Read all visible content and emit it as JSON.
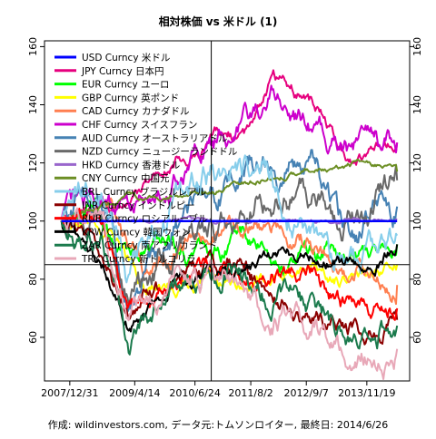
{
  "chart_data": {
    "type": "line",
    "title": "相対株価 vs 米ドル (1)",
    "footer": "作成: wildinvestors.com, データ元:トムソンロイター, 最終日: 2014/6/26",
    "x_start": "2007-11-01",
    "x_end": "2014-06-26",
    "xlim": [
      "2007-07-01",
      "2014-09-25"
    ],
    "ylim": [
      45,
      162
    ],
    "yticks": [
      60,
      80,
      100,
      120,
      140,
      160
    ],
    "xticks": [
      "2007/12/31",
      "2009/4/14",
      "2010/6/24",
      "2011/8/2",
      "2012/9/7",
      "2013/11/19"
    ],
    "grid": false,
    "legend_position": "top-left",
    "crosshair": {
      "x": "2010-10-20",
      "y": 85
    },
    "series": [
      {
        "name": "USD Curncy 米ドル",
        "color": "#0000ff",
        "noise": 0.0,
        "x": [
          0,
          1
        ],
        "values": [
          100,
          100
        ]
      },
      {
        "name": "JPY Curncy 日本円",
        "color": "#e6007e",
        "noise": 1.5,
        "x": [
          0,
          0.2,
          0.3,
          0.45,
          0.55,
          0.63,
          0.75,
          0.85,
          1
        ],
        "values": [
          100,
          107,
          120,
          128,
          130,
          152,
          140,
          122,
          127
        ]
      },
      {
        "name": "EUR Curncy ユーロ",
        "color": "#00ff00",
        "noise": 2.0,
        "x": [
          0,
          0.1,
          0.2,
          0.3,
          0.45,
          0.55,
          0.65,
          0.8,
          1
        ],
        "values": [
          100,
          105,
          88,
          95,
          85,
          95,
          85,
          90,
          92
        ]
      },
      {
        "name": "GBP Curncy 英ポンド",
        "color": "#ffff00",
        "noise": 1.5,
        "x": [
          0,
          0.15,
          0.25,
          0.4,
          0.55,
          0.7,
          0.85,
          1
        ],
        "values": [
          100,
          95,
          75,
          80,
          80,
          82,
          80,
          85
        ]
      },
      {
        "name": "CAD Curncy カナダドル",
        "color": "#ff7f50",
        "noise": 2.0,
        "x": [
          0,
          0.15,
          0.25,
          0.4,
          0.55,
          0.65,
          0.8,
          1
        ],
        "values": [
          100,
          105,
          82,
          95,
          100,
          98,
          88,
          78
        ]
      },
      {
        "name": "CHF Curncy スイスフラン",
        "color": "#cc00cc",
        "noise": 2.5,
        "x": [
          0,
          0.1,
          0.2,
          0.35,
          0.5,
          0.6,
          0.63,
          0.7,
          0.85,
          1
        ],
        "values": [
          100,
          110,
          105,
          115,
          130,
          140,
          145,
          135,
          125,
          127
        ]
      },
      {
        "name": "AUD Curncy オーストラリアドル",
        "color": "#4682b4",
        "noise": 3.0,
        "x": [
          0,
          0.12,
          0.2,
          0.35,
          0.5,
          0.6,
          0.75,
          0.85,
          1
        ],
        "values": [
          100,
          110,
          70,
          100,
          115,
          120,
          118,
          95,
          105
        ]
      },
      {
        "name": "NZD Curncy ニュージーランドドル",
        "color": "#696969",
        "noise": 3.0,
        "x": [
          0,
          0.12,
          0.2,
          0.35,
          0.5,
          0.6,
          0.75,
          0.85,
          1
        ],
        "values": [
          100,
          102,
          72,
          95,
          100,
          108,
          110,
          102,
          114
        ]
      },
      {
        "name": "HKD Curncy 香港ドル",
        "color": "#9966cc",
        "noise": 0.4,
        "x": [
          0,
          1
        ],
        "values": [
          100,
          100.5
        ]
      },
      {
        "name": "CNY Curncy 中国元",
        "color": "#6b8e23",
        "noise": 0.6,
        "x": [
          0,
          0.2,
          0.3,
          0.45,
          0.6,
          0.75,
          0.9,
          1
        ],
        "values": [
          100,
          108,
          108,
          110,
          115,
          118,
          120,
          117
        ]
      },
      {
        "name": "BRL Curncy ブラジルレアル",
        "color": "#87ceeb",
        "noise": 3.0,
        "x": [
          0,
          0.12,
          0.2,
          0.35,
          0.5,
          0.6,
          0.7,
          0.85,
          1
        ],
        "values": [
          100,
          115,
          78,
          110,
          120,
          118,
          100,
          85,
          95
        ]
      },
      {
        "name": "INR Curncy インドルピー",
        "color": "#8b0000",
        "noise": 2.0,
        "x": [
          0,
          0.12,
          0.2,
          0.35,
          0.5,
          0.6,
          0.7,
          0.85,
          1
        ],
        "values": [
          100,
          90,
          70,
          80,
          85,
          78,
          70,
          62,
          66
        ]
      },
      {
        "name": "RUB Curncy ロシアルーブル",
        "color": "#ff0000",
        "noise": 2.0,
        "x": [
          0,
          0.12,
          0.2,
          0.35,
          0.5,
          0.6,
          0.75,
          0.85,
          1
        ],
        "values": [
          100,
          102,
          70,
          80,
          85,
          82,
          85,
          70,
          70
        ]
      },
      {
        "name": "KRW Curncy 韓国ウォン",
        "color": "#000000",
        "noise": 1.5,
        "x": [
          0,
          0.12,
          0.2,
          0.35,
          0.5,
          0.6,
          0.75,
          0.9,
          1
        ],
        "values": [
          100,
          85,
          65,
          80,
          85,
          85,
          88,
          85,
          92
        ]
      },
      {
        "name": "ZAR Curncy 南アフリカランド",
        "color": "#1a7a4c",
        "noise": 2.5,
        "x": [
          0,
          0.12,
          0.2,
          0.35,
          0.5,
          0.6,
          0.75,
          0.85,
          1
        ],
        "values": [
          100,
          95,
          60,
          80,
          85,
          75,
          70,
          62,
          64
        ]
      },
      {
        "name": "TRY Curncy 新トルコリラ",
        "color": "#e8a8b8",
        "noise": 2.5,
        "x": [
          0,
          0.12,
          0.2,
          0.35,
          0.5,
          0.6,
          0.75,
          0.85,
          1
        ],
        "values": [
          100,
          102,
          68,
          80,
          78,
          70,
          65,
          52,
          56
        ]
      }
    ]
  }
}
